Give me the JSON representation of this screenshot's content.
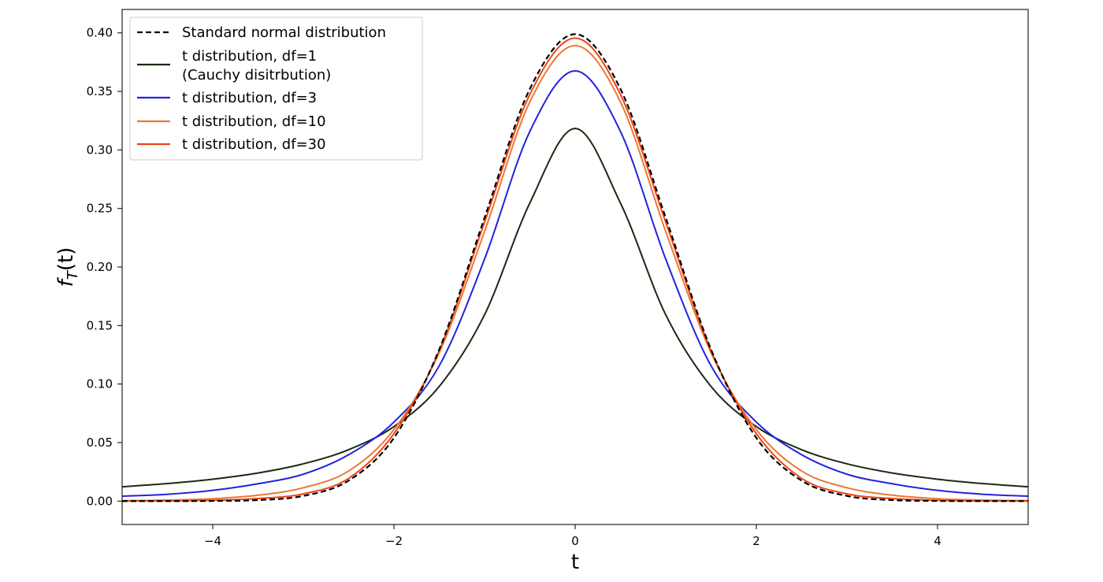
{
  "chart_data": {
    "type": "line",
    "xlabel": "t",
    "ylabel": "f_T(t)",
    "xlim": [
      -5,
      5
    ],
    "ylim": [
      -0.02,
      0.42
    ],
    "x_ticks": [
      -4,
      -2,
      0,
      2,
      4
    ],
    "x_tick_labels": [
      "−4",
      "−2",
      "0",
      "2",
      "4"
    ],
    "y_ticks": [
      0.0,
      0.05,
      0.1,
      0.15,
      0.2,
      0.25,
      0.3,
      0.35,
      0.4
    ],
    "y_tick_labels": [
      "0.00",
      "0.05",
      "0.10",
      "0.15",
      "0.20",
      "0.25",
      "0.30",
      "0.35",
      "0.40"
    ],
    "grid": false,
    "legend_position": "top-left",
    "x": [
      -5,
      -4.5,
      -4,
      -3.5,
      -3,
      -2.5,
      -2,
      -1.5,
      -1,
      -0.5,
      0,
      0.5,
      1,
      1.5,
      2,
      2.5,
      3,
      3.5,
      4,
      4.5,
      5
    ],
    "series": [
      {
        "name": "Standard normal distribution",
        "color": "#000000",
        "dash": "dashed",
        "values": [
          1.5e-06,
          1.6e-05,
          0.000134,
          0.000873,
          0.00443,
          0.0175,
          0.054,
          0.1295,
          0.242,
          0.3521,
          0.3989,
          0.3521,
          0.242,
          0.1295,
          0.054,
          0.0175,
          0.00443,
          0.000873,
          0.000134,
          1.6e-05,
          1.5e-06
        ]
      },
      {
        "name": "t distribution, df=1\n(Cauchy disitrbution)",
        "legend_lines": [
          "t distribution, df=1",
          "(Cauchy disitrbution)"
        ],
        "color": "#1a2a10",
        "dash": "solid",
        "values": [
          0.01224,
          0.01498,
          0.01872,
          0.024,
          0.03183,
          0.0439,
          0.06366,
          0.09794,
          0.15915,
          0.25465,
          0.31831,
          0.25465,
          0.15915,
          0.09794,
          0.06366,
          0.0439,
          0.03183,
          0.024,
          0.01872,
          0.01498,
          0.01224
        ]
      },
      {
        "name": "t distribution, df=3",
        "color": "#2222dd",
        "dash": "solid",
        "values": [
          0.00422,
          0.00585,
          0.00916,
          0.01479,
          0.02297,
          0.0396,
          0.0675,
          0.1156,
          0.2067,
          0.3158,
          0.36755,
          0.3158,
          0.2067,
          0.1156,
          0.0675,
          0.0396,
          0.02297,
          0.01479,
          0.00916,
          0.00585,
          0.00422
        ]
      },
      {
        "name": "t distribution, df=10",
        "color": "#ee7733",
        "dash": "solid",
        "values": [
          0.0004,
          0.00086,
          0.00203,
          0.00503,
          0.0114,
          0.0257,
          0.06105,
          0.1268,
          0.2303,
          0.341,
          0.3891,
          0.341,
          0.2303,
          0.1268,
          0.06105,
          0.0257,
          0.0114,
          0.00503,
          0.00203,
          0.00086,
          0.0004
        ]
      },
      {
        "name": "t distribution, df=30",
        "color": "#ee4411",
        "dash": "solid",
        "values": [
          6e-05,
          0.00024,
          0.0007,
          0.00217,
          0.00618,
          0.0194,
          0.0576,
          0.1284,
          0.2382,
          0.3474,
          0.3955,
          0.3474,
          0.2382,
          0.1284,
          0.0576,
          0.0194,
          0.00618,
          0.00217,
          0.0007,
          0.00024,
          6e-05
        ]
      }
    ]
  }
}
